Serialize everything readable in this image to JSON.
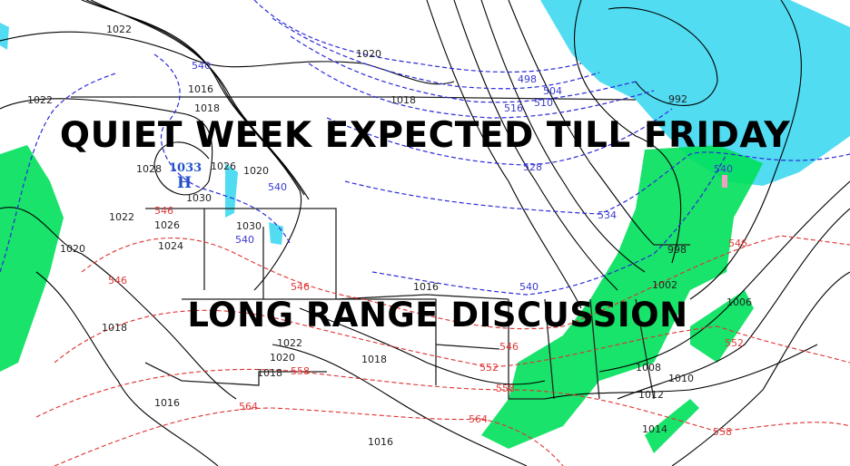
{
  "overlay": {
    "headline": "QUIET WEEK EXPECTED TILL FRIDAY",
    "subheadline": "LONG RANGE DISCUSSION"
  },
  "high_center": {
    "pressure": "1033",
    "symbol": "H"
  },
  "isobar_labels": [
    "1022",
    "1022",
    "1016",
    "1020",
    "1018",
    "1018",
    "1028",
    "1026",
    "1020",
    "1030",
    "1030",
    "1022",
    "1026",
    "1024",
    "1020",
    "1018",
    "1022",
    "1020",
    "1018",
    "1018",
    "1016",
    "1016",
    "1016",
    "992",
    "998",
    "1002",
    "1006",
    "1008",
    "1010",
    "1012",
    "1014"
  ],
  "thickness_blue_labels": [
    "540",
    "540",
    "540",
    "498",
    "504",
    "510",
    "516",
    "528",
    "534",
    "540",
    "540"
  ],
  "thickness_red_labels": [
    "546",
    "546",
    "546",
    "546",
    "546",
    "552",
    "552",
    "558",
    "558",
    "558",
    "564",
    "564"
  ],
  "colors": {
    "isobars": "#000000",
    "thickness_cold": "#2a2ad8",
    "thickness_warm": "#e03030",
    "rain": "#00e05a",
    "snow": "#33d6f0",
    "mix": "#f0a0c0"
  }
}
